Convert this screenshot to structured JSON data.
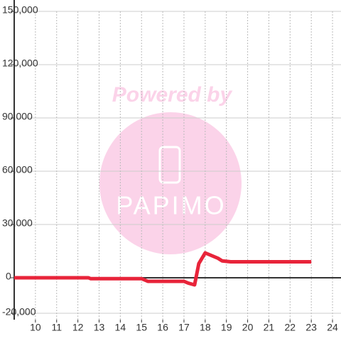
{
  "chart_data": {
    "type": "line",
    "watermark": {
      "top": "Powered by",
      "brand": "PAPIMO"
    },
    "x": [
      9,
      12.5,
      12.6,
      15,
      15.3,
      17,
      17.2,
      17.5,
      17.7,
      18,
      18.4,
      18.6,
      18.8,
      19.2,
      23
    ],
    "series": [
      {
        "color": "#e8243a",
        "values": [
          0,
          0,
          -500,
          -500,
          -2000,
          -2000,
          -3000,
          -4000,
          8000,
          14000,
          12000,
          11000,
          9500,
          9000,
          9000
        ]
      }
    ],
    "xlim": [
      9,
      24.4
    ],
    "xticks": [
      10,
      11,
      12,
      13,
      14,
      15,
      16,
      17,
      18,
      19,
      20,
      21,
      22,
      23,
      24
    ],
    "ylim": [
      -23600,
      150000
    ],
    "yticks": [
      {
        "value": -20000,
        "label": "-20,000"
      },
      0,
      {
        "value": 30000,
        "label": "30,000"
      },
      {
        "value": 60000,
        "label": "60,000"
      },
      {
        "value": 90000,
        "label": "90,000"
      },
      {
        "value": 120000,
        "label": "120,000"
      },
      {
        "value": 150000,
        "label": "150,000"
      }
    ],
    "grid": true
  }
}
